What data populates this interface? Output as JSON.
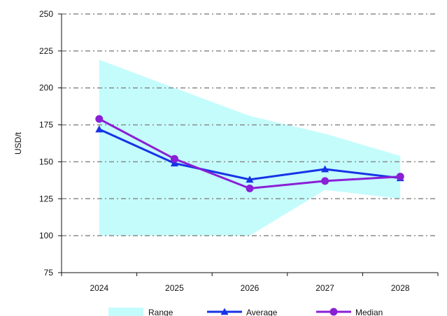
{
  "chart_data": {
    "type": "line",
    "title": "",
    "xlabel": "",
    "ylabel": "USD/t",
    "x": [
      "2024",
      "2025",
      "2026",
      "2027",
      "2028"
    ],
    "ylim": [
      75,
      250
    ],
    "yticks": [
      75,
      100,
      125,
      150,
      175,
      200,
      225,
      250
    ],
    "grid": "horizontal dash-dot",
    "legend": "bottom",
    "range": {
      "name": "Range",
      "color": "#c4fcfc",
      "low": [
        100,
        100,
        100,
        131,
        125
      ],
      "high": [
        219,
        200,
        181,
        169,
        154
      ]
    },
    "series": [
      {
        "name": "Average",
        "color": "#1633e6",
        "marker": "triangle",
        "values": [
          172,
          149,
          138,
          145,
          139
        ]
      },
      {
        "name": "Median",
        "color": "#8a1fd6",
        "marker": "circle",
        "values": [
          179,
          152,
          132,
          137,
          140
        ]
      }
    ]
  }
}
